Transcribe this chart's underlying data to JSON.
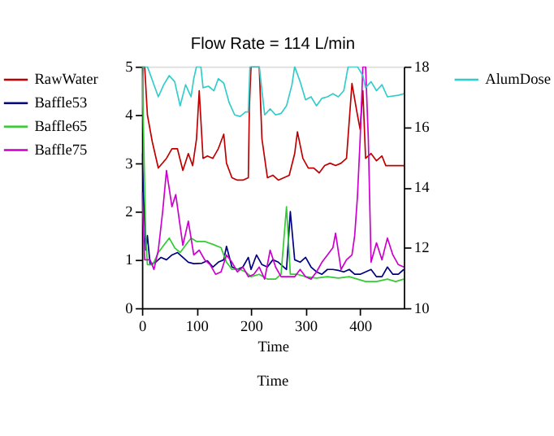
{
  "chart_data": {
    "type": "line",
    "title": "Flow Rate = 114 L/min",
    "xlabel": "Time",
    "annotations": [
      "Time"
    ],
    "xlim": [
      0,
      480
    ],
    "xticks": [
      0,
      100,
      200,
      300,
      400
    ],
    "ylim": [
      0,
      5
    ],
    "yticks": [
      0,
      1,
      2,
      3,
      4,
      5
    ],
    "y2lim": [
      10,
      18
    ],
    "y2ticks": [
      10,
      12,
      14,
      16,
      18
    ],
    "grid": false,
    "legend": "left",
    "marker": "none",
    "line_style": "solid",
    "series": [
      {
        "name": "RawWater",
        "color": "#c00000",
        "x": [
          0,
          5,
          10,
          19,
          30,
          45,
          55,
          65,
          75,
          85,
          93,
          100,
          105,
          112,
          120,
          130,
          140,
          150,
          155,
          165,
          175,
          185,
          195,
          197,
          200,
          215,
          220,
          230,
          240,
          250,
          260,
          270,
          280,
          285,
          295,
          305,
          315,
          325,
          335,
          345,
          355,
          365,
          375,
          385,
          395,
          400,
          405,
          410,
          420,
          430,
          440,
          447,
          460,
          480
        ],
        "values": [
          5,
          5,
          4.0,
          3.44,
          2.9,
          3.1,
          3.3,
          3.3,
          2.85,
          3.2,
          2.95,
          3.5,
          4.5,
          3.1,
          3.15,
          3.1,
          3.3,
          3.6,
          3.0,
          2.7,
          2.65,
          2.65,
          2.7,
          4.2,
          5,
          5,
          3.5,
          2.7,
          2.75,
          2.65,
          2.7,
          2.75,
          3.2,
          3.65,
          3.1,
          2.9,
          2.9,
          2.8,
          2.95,
          3.0,
          2.95,
          3.0,
          3.1,
          4.65,
          4.0,
          3.7,
          4.5,
          3.1,
          3.2,
          3.05,
          3.15,
          2.95,
          2.95,
          2.95
        ]
      },
      {
        "name": "Baffle53",
        "color": "#000080",
        "x": [
          0,
          3,
          7,
          10,
          15,
          25,
          35,
          45,
          55,
          65,
          75,
          85,
          95,
          110,
          120,
          130,
          140,
          150,
          155,
          165,
          175,
          185,
          195,
          200,
          210,
          220,
          230,
          240,
          250,
          260,
          265,
          272,
          280,
          290,
          300,
          310,
          320,
          330,
          340,
          350,
          360,
          370,
          380,
          390,
          400,
          410,
          420,
          430,
          440,
          450,
          460,
          470,
          480
        ],
        "values": [
          3.2,
          2.3,
          1.2,
          1.5,
          0.9,
          0.95,
          1.05,
          1.0,
          1.1,
          1.15,
          1.05,
          0.95,
          0.92,
          0.93,
          0.98,
          0.85,
          0.95,
          1.0,
          1.28,
          0.85,
          0.8,
          0.85,
          1.05,
          0.8,
          1.1,
          0.9,
          0.85,
          1.0,
          0.95,
          0.85,
          0.8,
          2.0,
          1.0,
          0.95,
          1.05,
          0.85,
          0.75,
          0.7,
          0.8,
          0.8,
          0.78,
          0.75,
          0.8,
          0.7,
          0.7,
          0.75,
          0.8,
          0.65,
          0.65,
          0.85,
          0.7,
          0.7,
          0.8
        ]
      },
      {
        "name": "Baffle65",
        "color": "#33cc33",
        "x": [
          0,
          3,
          7,
          10,
          20,
          30,
          40,
          50,
          60,
          70,
          80,
          90,
          100,
          115,
          130,
          145,
          155,
          165,
          180,
          190,
          200,
          215,
          230,
          245,
          255,
          265,
          272,
          285,
          300,
          320,
          340,
          360,
          380,
          395,
          410,
          430,
          450,
          465,
          480
        ],
        "values": [
          5,
          3.6,
          1.5,
          0.9,
          0.9,
          1.15,
          1.3,
          1.45,
          1.25,
          1.15,
          1.3,
          1.45,
          1.38,
          1.38,
          1.32,
          1.25,
          0.95,
          0.8,
          0.8,
          0.75,
          0.65,
          0.7,
          0.6,
          0.6,
          0.7,
          2.1,
          0.7,
          0.7,
          0.65,
          0.62,
          0.65,
          0.62,
          0.65,
          0.6,
          0.55,
          0.55,
          0.6,
          0.55,
          0.6
        ]
      },
      {
        "name": "Baffle75",
        "color": "#cc00cc",
        "x": [
          0,
          5,
          15,
          22,
          30,
          38,
          45,
          55,
          62,
          70,
          75,
          85,
          95,
          105,
          115,
          125,
          135,
          145,
          155,
          165,
          175,
          185,
          195,
          205,
          215,
          225,
          235,
          245,
          255,
          265,
          280,
          290,
          300,
          310,
          320,
          330,
          340,
          350,
          355,
          365,
          375,
          385,
          390,
          395,
          400,
          405,
          410,
          415,
          420,
          430,
          440,
          450,
          460,
          470,
          480
        ],
        "values": [
          2.4,
          1.0,
          1.0,
          0.8,
          1.2,
          2.0,
          2.85,
          2.1,
          2.35,
          1.7,
          1.3,
          1.8,
          1.1,
          1.2,
          1.0,
          0.9,
          0.7,
          0.75,
          1.1,
          0.95,
          0.75,
          0.85,
          0.65,
          0.7,
          0.85,
          0.6,
          1.2,
          0.85,
          0.65,
          0.65,
          0.65,
          0.8,
          0.65,
          0.6,
          0.75,
          0.95,
          1.1,
          1.25,
          1.55,
          0.8,
          1.0,
          1.1,
          1.5,
          2.3,
          3.5,
          5,
          5,
          3.5,
          0.95,
          1.35,
          1.0,
          1.45,
          1.1,
          0.9,
          0.85
        ]
      },
      {
        "name": "AlumDose",
        "color": "#33cccc",
        "axis": "y2",
        "x": [
          0,
          10,
          20,
          30,
          40,
          50,
          60,
          70,
          80,
          90,
          95,
          100,
          108,
          112,
          122,
          132,
          140,
          150,
          160,
          170,
          180,
          190,
          195,
          198,
          215,
          225,
          235,
          245,
          255,
          265,
          275,
          280,
          290,
          300,
          310,
          320,
          330,
          340,
          350,
          360,
          370,
          378,
          395,
          405,
          410,
          420,
          430,
          440,
          450,
          470,
          480
        ],
        "values": [
          18,
          18,
          17.5,
          17.0,
          17.4,
          17.7,
          17.5,
          16.7,
          17.4,
          17.0,
          17.6,
          18,
          18,
          17.3,
          17.35,
          17.2,
          17.6,
          17.45,
          16.8,
          16.4,
          16.35,
          16.5,
          16.5,
          18,
          18,
          16.4,
          16.6,
          16.4,
          16.45,
          16.7,
          17.4,
          18,
          17.5,
          16.9,
          17.0,
          16.7,
          16.95,
          17.0,
          17.1,
          17.0,
          17.2,
          18,
          18,
          17.7,
          17.3,
          17.5,
          17.2,
          17.4,
          17.0,
          17.05,
          17.1
        ]
      }
    ]
  }
}
